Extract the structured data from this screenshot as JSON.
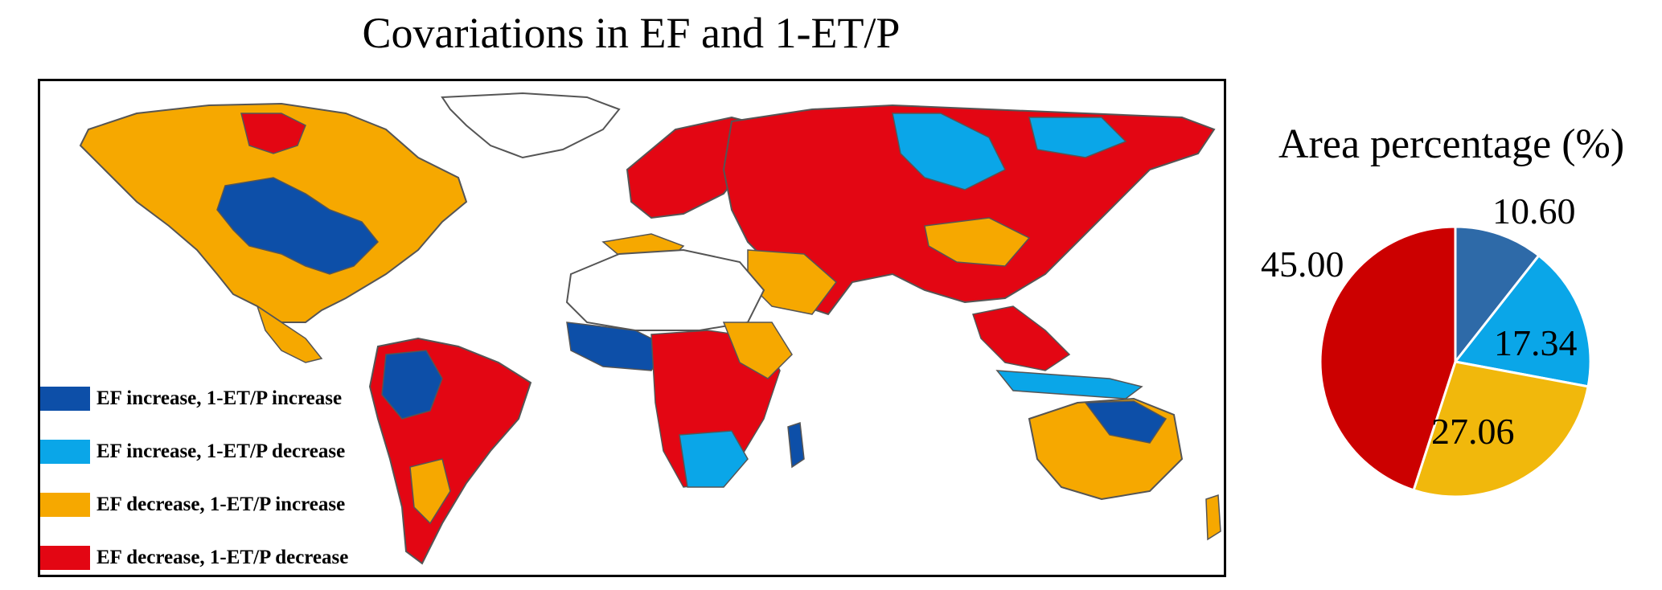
{
  "map": {
    "title": "Covariations in EF and 1-ET/P",
    "legend": [
      {
        "label": "EF increase, 1-ET/P increase",
        "color": "#0d4fa8"
      },
      {
        "label": "EF increase, 1-ET/P decrease",
        "color": "#0aa6e8"
      },
      {
        "label": "EF decrease, 1-ET/P increase",
        "color": "#f6a800"
      },
      {
        "label": "EF decrease, 1-ET/P decrease",
        "color": "#e30613"
      }
    ]
  },
  "chart_data": {
    "type": "pie",
    "title": "Area percentage (%)",
    "slices": [
      {
        "value": 10.6,
        "label": "10.60",
        "color": "#2e6aa8"
      },
      {
        "value": 17.34,
        "label": "17.34",
        "color": "#0aa6e8"
      },
      {
        "value": 27.06,
        "label": "27.06",
        "color": "#f1b80c"
      },
      {
        "value": 45.0,
        "label": "45.00",
        "color": "#cc0000"
      }
    ]
  }
}
